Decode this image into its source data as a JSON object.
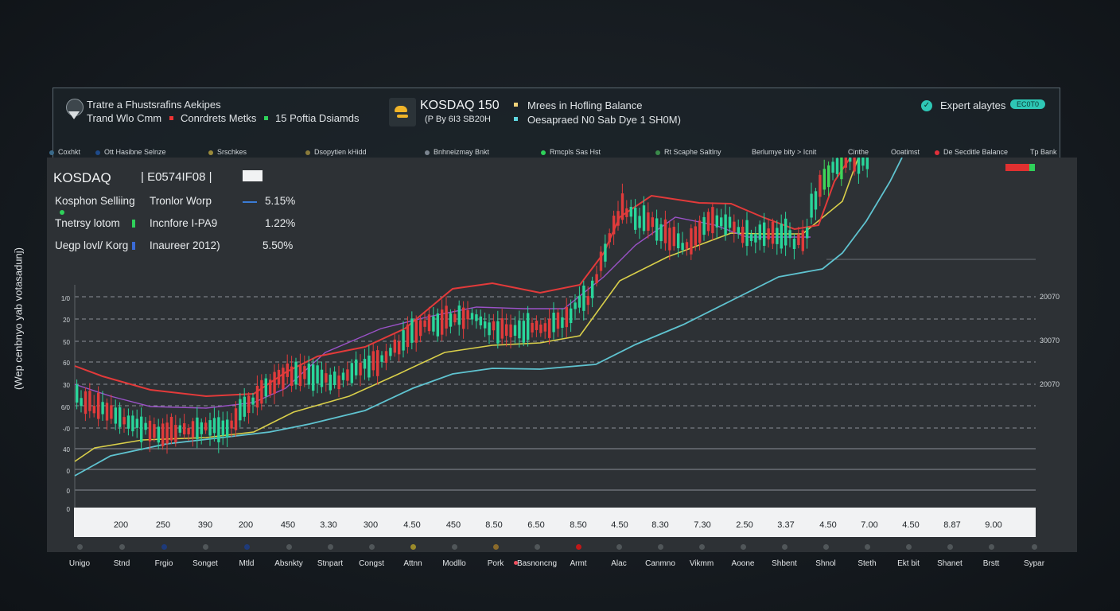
{
  "header": {
    "left_line1": "Tratre a Fhustsrafins Aekipes",
    "left_line2a": "Trand Wlo Cmm",
    "left_line2b": "Conrdrets Metks",
    "left_line2c": "15 Poftia Dsiamds",
    "center_title": "KOSDAQ 150",
    "center_sub": "(P By 6I3  SB20H",
    "right_line1": "Mrees in Hofling Balance",
    "right_line2": "Oesapraed N0 Sab Dye 1 SH0M)",
    "expert_label": "Expert alaytes",
    "expert_pill": "EC0T0"
  },
  "legend": [
    {
      "label": "Coxhkt",
      "color": "#3a6a8a"
    },
    {
      "label": "Ott  Hasibne Selnze",
      "color": "#1e4a8a"
    },
    {
      "label": "Srschkes",
      "color": "#9a8a3a"
    },
    {
      "label": "Dsopytien kHidd",
      "color": "#8a7a3a"
    },
    {
      "label": "Bnhneizmay Bnkt",
      "color": "#7b8590"
    },
    {
      "label": "Rmcpls Sas Hst",
      "color": "#2fd15a"
    },
    {
      "label": "Rt  Scaphe Saltlny",
      "color": "#3a8a4a"
    },
    {
      "label": "Berlumye bity > Icnit",
      "color": ""
    },
    {
      "label": "Cinthe",
      "color": ""
    },
    {
      "label": "Ooatimst",
      "color": ""
    },
    {
      "label": "De Secditle Balance",
      "color": "#e0303a"
    },
    {
      "label": "Tp Bank",
      "color": ""
    }
  ],
  "panel": {
    "symbol": "KOSDAQ",
    "code": "E0574IF08",
    "stats": [
      {
        "label": "Kosphon Selliing",
        "sub": "Tronlor Worp",
        "value": "5.15%",
        "color": "#3a7bd5"
      },
      {
        "label": "Tnetrsy lotom",
        "sub": "Incnfore I-PA9",
        "value": "1.22%",
        "color": "#2fd15a"
      },
      {
        "label": "Uegp lovl/ Korg",
        "sub": "Inaureer 2012)",
        "value": "5.50%",
        "color": "#3a6ad5"
      }
    ]
  },
  "side_label": "(Wep cenbnyo yab votasadunj)",
  "right_ticks": [
    "20070",
    "30070",
    "20070"
  ],
  "bottom_labels": [
    "Unigo",
    "Stnd",
    "Frgio",
    "Songet",
    "Mtld",
    "Absnkty",
    "Stnpart",
    "Congst",
    "Attnn",
    "Modllo",
    "Pork",
    "Basnoncng",
    "Armt",
    "Alac",
    "Canmno",
    "Vikmm",
    "Aoone",
    "Shbent",
    "Shnol",
    "Steth",
    "Ekt bit",
    "Shanet",
    "Brstt",
    "Sypar"
  ],
  "bottom_dot_colors": [
    "#505659",
    "#505659",
    "#1e3a7a",
    "#505659",
    "#1e3a7a",
    "#505659",
    "#505659",
    "#505659",
    "#9a8a2a",
    "#505659",
    "#8a6a2a",
    "#505659",
    "#c01818",
    "#505659",
    "#505659",
    "#505659",
    "#505659",
    "#505659",
    "#505659",
    "#505659",
    "#505659",
    "#505659",
    "#505659",
    "#505659"
  ],
  "chart_data": {
    "type": "line",
    "y_tick_labels": [
      "1/0",
      "20",
      "50",
      "60",
      "30",
      "6/0",
      "-/0",
      "40",
      "0",
      "0",
      "0"
    ],
    "x": [
      "200",
      "250",
      "390",
      "200",
      "450",
      "3.30",
      "300",
      "4.50",
      "450",
      "8.50",
      "6.50",
      "8.50",
      "4.50",
      "8.30",
      "7.30",
      "2.50",
      "3.37",
      "4.50",
      "7.00",
      "4.50",
      "8.87",
      "9.00"
    ],
    "colors": {
      "up": "#29d59a",
      "down": "#e03b3b",
      "ma_red": "#e23a3a",
      "ma_yellow": "#d9cf4a",
      "ma_purple": "#9b52c8",
      "ma_cyan": "#5fc3d0",
      "green_candle": "#3ed65a"
    },
    "series": []
  }
}
